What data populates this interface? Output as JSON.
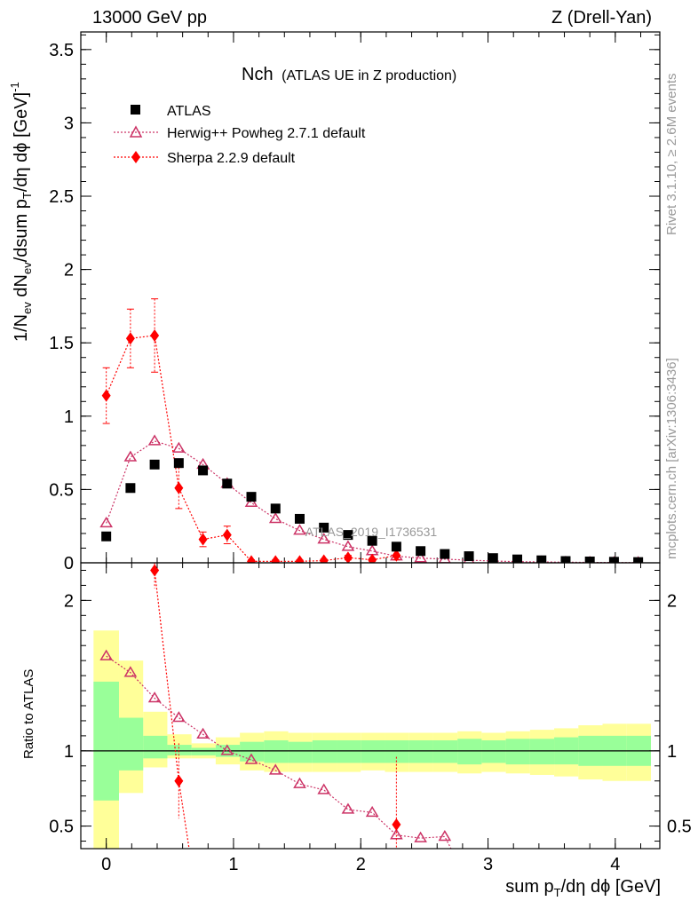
{
  "header": {
    "left": "13000 GeV pp",
    "right": "Z (Drell-Yan)"
  },
  "side_labels": {
    "rivet": "Rivet 3.1.10, ≥ 2.6M events",
    "mcplots": "mcplots.cern.ch [arXiv:1306:3436]"
  },
  "watermark": "ATLAS_2019_I1736531",
  "colors": {
    "data": "#000000",
    "herwig": "#cc3366",
    "sherpa": "#ff0000",
    "band_outer": "#ffff99",
    "band_inner": "#99ff99"
  },
  "chart_data": [
    {
      "type": "scatter",
      "panel": "main",
      "title_main": "Nch",
      "title_sub": "(ATLAS UE in Z production)",
      "xlabel": "sum p_T/dη dϕ [GeV]",
      "ylabel": "1/N_ev dN_ev/dsum p_T/dη dϕ [GeV]^-1",
      "xlim": [
        -0.2,
        4.35
      ],
      "ylim": [
        0,
        3.62
      ],
      "x_ticks": [
        0,
        1,
        2,
        3,
        4
      ],
      "y_ticks": [
        0,
        0.5,
        1,
        1.5,
        2,
        2.5,
        3,
        3.5
      ],
      "y_tick_labels": [
        "0",
        "0.5",
        "1",
        "1.5",
        "2",
        "2.5",
        "3",
        "3.5"
      ],
      "legend": [
        "ATLAS",
        "Herwig++ Powheg 2.7.1 default",
        "Sherpa 2.2.9 default"
      ],
      "series": [
        {
          "name": "ATLAS",
          "x": [
            0,
            0.19,
            0.38,
            0.57,
            0.76,
            0.95,
            1.14,
            1.33,
            1.52,
            1.71,
            1.9,
            2.09,
            2.28,
            2.47,
            2.66,
            2.85,
            3.04,
            3.23,
            3.42,
            3.61,
            3.8,
            3.99,
            4.18
          ],
          "values": [
            0.18,
            0.51,
            0.67,
            0.68,
            0.63,
            0.54,
            0.45,
            0.37,
            0.3,
            0.24,
            0.19,
            0.15,
            0.11,
            0.08,
            0.06,
            0.045,
            0.032,
            0.023,
            0.017,
            0.012,
            0.009,
            0.007,
            0.005
          ]
        },
        {
          "name": "Herwig++ Powheg 2.7.1 default",
          "x": [
            0,
            0.19,
            0.38,
            0.57,
            0.76,
            0.95,
            1.14,
            1.33,
            1.52,
            1.71,
            1.9,
            2.09,
            2.28,
            2.47,
            2.66,
            2.85,
            3.04,
            3.23,
            3.42,
            3.61,
            3.8,
            3.99,
            4.18
          ],
          "values": [
            0.27,
            0.72,
            0.83,
            0.78,
            0.67,
            0.54,
            0.41,
            0.3,
            0.22,
            0.16,
            0.11,
            0.08,
            0.045,
            0.032,
            0.025,
            0.018,
            0.012,
            0.008,
            0.006,
            0.004,
            0.003,
            0.002,
            0.0015
          ]
        },
        {
          "name": "Sherpa 2.2.9 default",
          "x": [
            0,
            0.19,
            0.38,
            0.57,
            0.76,
            0.95,
            1.14,
            1.33,
            1.52,
            1.71,
            1.9,
            2.09,
            2.28
          ],
          "values": [
            1.14,
            1.53,
            1.55,
            0.51,
            0.16,
            0.19,
            0.01,
            0.01,
            0.01,
            0.015,
            0.035,
            0.02,
            0.05
          ],
          "err": [
            0.19,
            0.2,
            0.25,
            0.14,
            0.05,
            0.06,
            0.01,
            0.01,
            0.01,
            0.01,
            0.015,
            0.01,
            0.03
          ]
        }
      ]
    },
    {
      "type": "line",
      "panel": "ratio",
      "ylabel": "Ratio to ATLAS",
      "xlim": [
        -0.2,
        4.35
      ],
      "ylim": [
        0.35,
        2.25
      ],
      "y_ticks": [
        0.5,
        1,
        2
      ],
      "y_tick_labels": [
        "0.5",
        "1",
        "2"
      ],
      "bands": {
        "edges": [
          -0.1,
          0.1,
          0.29,
          0.48,
          0.67,
          0.86,
          1.05,
          1.24,
          1.43,
          1.62,
          1.81,
          2.0,
          2.19,
          2.38,
          2.57,
          2.76,
          2.95,
          3.14,
          3.33,
          3.52,
          3.71,
          3.9,
          4.09,
          4.28
        ],
        "outer_lo": [
          0.3,
          0.72,
          0.89,
          0.95,
          0.95,
          0.91,
          0.87,
          0.86,
          0.86,
          0.86,
          0.86,
          0.87,
          0.86,
          0.86,
          0.86,
          0.85,
          0.86,
          0.85,
          0.84,
          0.83,
          0.81,
          0.8,
          0.8
        ],
        "outer_hi": [
          1.8,
          1.6,
          1.26,
          1.11,
          1.05,
          1.09,
          1.12,
          1.13,
          1.12,
          1.12,
          1.12,
          1.12,
          1.12,
          1.12,
          1.12,
          1.13,
          1.12,
          1.13,
          1.14,
          1.15,
          1.17,
          1.18,
          1.18
        ],
        "inner_lo": [
          0.67,
          0.87,
          0.95,
          0.97,
          0.97,
          0.96,
          0.93,
          0.92,
          0.92,
          0.92,
          0.92,
          0.92,
          0.92,
          0.92,
          0.92,
          0.91,
          0.92,
          0.91,
          0.91,
          0.91,
          0.9,
          0.9,
          0.9
        ],
        "inner_hi": [
          1.46,
          1.22,
          1.1,
          1.04,
          1.02,
          1.04,
          1.06,
          1.07,
          1.06,
          1.07,
          1.07,
          1.07,
          1.07,
          1.07,
          1.07,
          1.08,
          1.07,
          1.08,
          1.08,
          1.09,
          1.1,
          1.1,
          1.1
        ]
      },
      "series": [
        {
          "name": "Herwig++ Powheg 2.7.1 default",
          "x": [
            0,
            0.19,
            0.38,
            0.57,
            0.76,
            0.95,
            1.14,
            1.33,
            1.52,
            1.71,
            1.9,
            2.09,
            2.28,
            2.47,
            2.66
          ],
          "values": [
            1.63,
            1.52,
            1.35,
            1.22,
            1.11,
            1.0,
            0.94,
            0.87,
            0.78,
            0.74,
            0.61,
            0.59,
            0.44,
            0.42,
            0.43
          ]
        },
        {
          "name": "Sherpa 2.2.9 default",
          "x": [
            0.38,
            0.57,
            2.28
          ],
          "values": [
            2.2,
            0.8,
            0.51
          ],
          "tail_x": 0.66,
          "err": [
            0.12,
            0.25,
            0.45
          ]
        }
      ]
    }
  ]
}
